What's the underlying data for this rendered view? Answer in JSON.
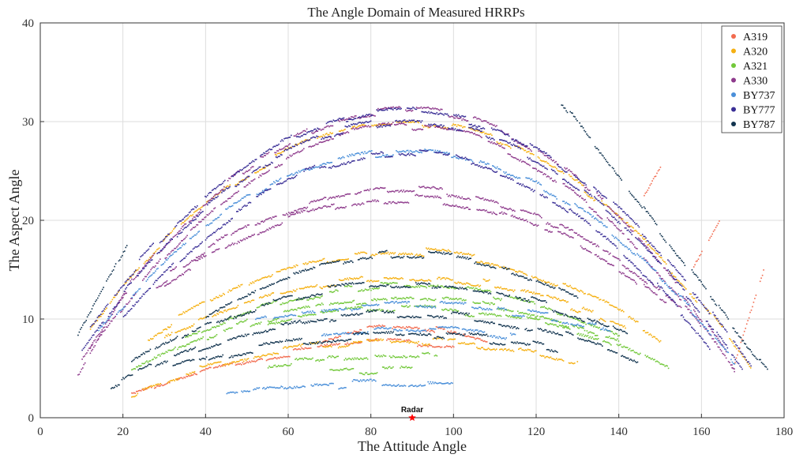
{
  "chart_data": {
    "type": "scatter",
    "title": "The Angle Domain of Measured HRRPs",
    "xlabel": "The Attitude Angle",
    "ylabel": "The Aspect Angle",
    "xlim": [
      0,
      180
    ],
    "ylim": [
      0,
      40
    ],
    "xticks": [
      0,
      20,
      40,
      60,
      80,
      100,
      120,
      140,
      160,
      180
    ],
    "yticks": [
      0,
      10,
      20,
      30,
      40
    ],
    "grid": true,
    "legend_position": "top-right",
    "annotation": {
      "label": "Radar",
      "x": 90,
      "y": 0,
      "marker": "star",
      "color": "#ff0000"
    },
    "series": [
      {
        "name": "A319",
        "color": "#f26b4f",
        "arcs": [
          {
            "x0": 22,
            "x1": 100,
            "peak": 7.6,
            "ymin": 2.3
          },
          {
            "x0": 68,
            "x1": 108,
            "peak": 9.2,
            "ymin": 7.8
          },
          {
            "x0": 146,
            "x1": 150,
            "ymin": 22.5,
            "ymax": 25.5,
            "linear": true
          },
          {
            "x0": 158,
            "x1": 165,
            "ymin": 15.5,
            "ymax": 20.5,
            "linear": true
          },
          {
            "x0": 168,
            "x1": 175,
            "ymin": 5.5,
            "ymax": 15.0,
            "linear": true
          }
        ]
      },
      {
        "name": "A320",
        "color": "#f5b012",
        "arcs": [
          {
            "x0": 22,
            "x1": 130,
            "peak": 7.8,
            "ymin": 2.5
          },
          {
            "x0": 30,
            "x1": 142,
            "peak": 14.3,
            "ymin": 8.2
          },
          {
            "x0": 26,
            "x1": 150,
            "peak": 16.8,
            "ymin": 8.0
          },
          {
            "x0": 12,
            "x1": 172,
            "peak": 29.8,
            "ymin": 4.8
          }
        ]
      },
      {
        "name": "A321",
        "color": "#72c83a",
        "arcs": [
          {
            "x0": 22,
            "x1": 153,
            "peak": 12.0,
            "ymin": 4.5
          },
          {
            "x0": 55,
            "x1": 140,
            "peak": 11.0,
            "ymin": 7.5
          },
          {
            "x0": 55,
            "x1": 96,
            "peak": 6.2,
            "ymin": 5.5
          },
          {
            "x0": 70,
            "x1": 90,
            "peak": 4.8,
            "ymin": 4.5
          },
          {
            "x0": 35,
            "x1": 140,
            "peak": 13.3,
            "ymin": 8.0
          }
        ]
      },
      {
        "name": "A330",
        "color": "#8e3a8c",
        "arcs": [
          {
            "x0": 10,
            "x1": 168,
            "peak": 29.5,
            "ymin": 4.5
          },
          {
            "x0": 12,
            "x1": 168,
            "peak": 31.2,
            "ymin": 5.0
          },
          {
            "x0": 28,
            "x1": 155,
            "peak": 23.2,
            "ymin": 11.0
          },
          {
            "x0": 30,
            "x1": 152,
            "peak": 22.2,
            "ymin": 11.5
          },
          {
            "x0": 9,
            "x1": 22,
            "ymin": 4.5,
            "ymax": 14.0,
            "linear": true
          }
        ]
      },
      {
        "name": "BY737",
        "color": "#4a8fd9",
        "arcs": [
          {
            "x0": 14,
            "x1": 168,
            "peak": 27.0,
            "ymin": 5.5
          },
          {
            "x0": 52,
            "x1": 138,
            "peak": 11.4,
            "ymin": 9.0
          },
          {
            "x0": 45,
            "x1": 100,
            "peak": 3.5,
            "ymin": 2.7
          },
          {
            "x0": 68,
            "x1": 115,
            "peak": 9.0,
            "ymin": 8.0
          }
        ]
      },
      {
        "name": "BY777",
        "color": "#3a2f96",
        "arcs": [
          {
            "x0": 10,
            "x1": 170,
            "peak": 30.0,
            "ymin": 4.5
          },
          {
            "x0": 12,
            "x1": 172,
            "peak": 31.0,
            "ymin": 4.8
          },
          {
            "x0": 20,
            "x1": 162,
            "peak": 26.8,
            "ymin": 7.0
          }
        ]
      },
      {
        "name": "BY787",
        "color": "#12344f",
        "arcs": [
          {
            "x0": 17,
            "x1": 145,
            "peak": 10.5,
            "ymin": 3.2
          },
          {
            "x0": 22,
            "x1": 142,
            "peak": 13.6,
            "ymin": 5.5
          },
          {
            "x0": 32,
            "x1": 125,
            "peak": 8.4,
            "ymin": 5.0
          },
          {
            "x0": 40,
            "x1": 130,
            "peak": 16.6,
            "ymin": 10.5
          },
          {
            "x0": 126,
            "x1": 176,
            "ymin": 4.5,
            "ymax": 32.0,
            "linear": true,
            "descending": true
          },
          {
            "x0": 9,
            "x1": 21,
            "ymin": 8.5,
            "ymax": 17.8,
            "linear": true
          }
        ]
      }
    ]
  }
}
